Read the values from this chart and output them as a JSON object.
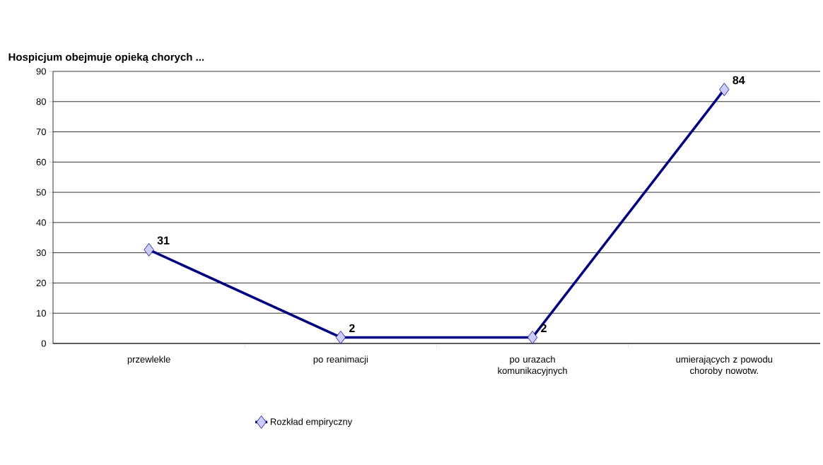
{
  "chart_data": {
    "type": "line",
    "title": "Hospicjum obejmuje opieką chorych ...",
    "categories": [
      "przewlekle",
      "po reanimacji",
      "po urazach komunikacyjnych",
      "umierających z powodu choroby nowotw."
    ],
    "series": [
      {
        "name": "Rozkład empiryczny",
        "color": "#000080",
        "values": [
          31,
          2,
          2,
          84
        ]
      }
    ],
    "ylim": [
      0,
      90
    ],
    "yticks": [
      0,
      10,
      20,
      30,
      40,
      50,
      60,
      70,
      80,
      90
    ],
    "grid": "y",
    "legend": "bottom",
    "marker": "diamond",
    "line_style": "solid",
    "data_labels": true
  }
}
